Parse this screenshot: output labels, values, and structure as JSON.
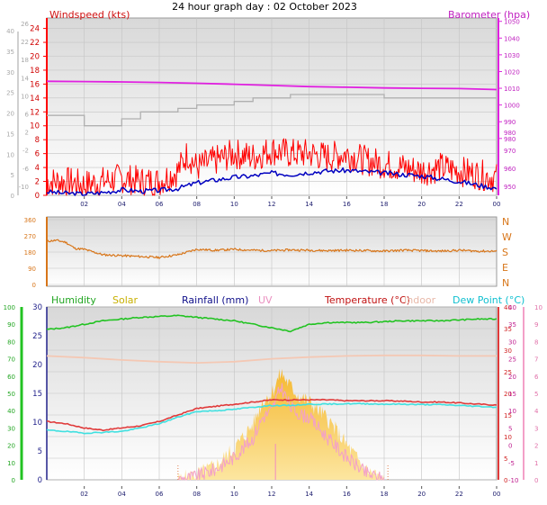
{
  "chart_data": [
    {
      "type": "line",
      "title": "24 hour graph day : 02 October 2023",
      "ylabel_left": "Windspeed (kts)",
      "ylabel_right": "Barometer (hpa)",
      "x_ticks": [
        "02",
        "04",
        "06",
        "08",
        "10",
        "12",
        "14",
        "16",
        "18",
        "20",
        "22",
        "00"
      ],
      "x_range_hours": [
        0,
        24
      ],
      "y_left": {
        "ticks_outer": [
          0,
          5,
          10,
          15,
          20,
          25,
          30,
          35,
          40
        ],
        "ticks_inner": [
          -10,
          -6,
          -2,
          2,
          6,
          10,
          14,
          18,
          22,
          26
        ],
        "labels": [
          "0",
          "2",
          "4",
          "6",
          "8",
          "10",
          "12",
          "14",
          "16",
          "18",
          "20",
          "22",
          "24"
        ],
        "range": [
          0,
          25.5
        ]
      },
      "y_right": {
        "ticks": [
          980,
          990,
          1000,
          1010,
          1020,
          1030,
          1040,
          1050
        ],
        "labels_inner": [
          950,
          960,
          970,
          980
        ],
        "range": [
          946,
          1052
        ]
      },
      "grid": true,
      "series": [
        {
          "name": "Barometer (hpa)",
          "color": "#e020e0",
          "x": [
            0,
            2,
            4,
            6,
            8,
            10,
            12,
            14,
            16,
            18,
            20,
            22,
            24
          ],
          "values": [
            1014.2,
            1014.0,
            1013.8,
            1013.5,
            1013.0,
            1012.4,
            1011.7,
            1011.0,
            1010.6,
            1010.2,
            1010.0,
            1009.8,
            1009.2
          ]
        },
        {
          "name": "Windspeed (kts)",
          "color": "#ff0000",
          "x": [
            0,
            1,
            2,
            3,
            4,
            5,
            6,
            7,
            7.5,
            8,
            9,
            10,
            11,
            12,
            13,
            14,
            15,
            16,
            17,
            18,
            19,
            20,
            21,
            22,
            23,
            24
          ],
          "values": [
            2,
            2,
            1.5,
            2,
            2.5,
            2,
            2,
            3.5,
            6,
            4,
            5,
            6,
            5.5,
            6.5,
            6,
            6,
            5.5,
            6,
            5,
            4.5,
            4,
            3.5,
            4,
            3.5,
            3,
            2.5
          ]
        },
        {
          "name": "Wind average",
          "color": "#0000c0",
          "x": [
            0,
            1,
            2,
            3,
            4,
            5,
            6,
            7,
            8,
            9,
            10,
            11,
            12,
            13,
            14,
            15,
            16,
            17,
            18,
            19,
            20,
            21,
            22,
            23,
            24
          ],
          "values": [
            0.5,
            0.3,
            0.2,
            0.4,
            0.8,
            0.6,
            0.7,
            1.0,
            1.8,
            2.2,
            2.6,
            2.8,
            3.2,
            3.0,
            3.3,
            3.5,
            3.6,
            3.4,
            3.2,
            3.0,
            2.8,
            2.4,
            2.0,
            1.5,
            1.0
          ]
        },
        {
          "name": "Wind gust grey",
          "color": "#b0b0b0",
          "x": [
            0,
            1,
            2,
            3,
            4,
            5,
            6,
            7,
            8,
            9,
            10,
            11,
            12,
            13,
            14,
            15,
            16,
            17,
            18,
            19,
            20,
            21,
            22,
            23,
            24
          ],
          "values": [
            11.5,
            11.5,
            10,
            10,
            11,
            12,
            12,
            12.5,
            13,
            13,
            13.5,
            14,
            14,
            14.5,
            14.5,
            14.5,
            14.5,
            14.5,
            14,
            14,
            14,
            14,
            14,
            14,
            14
          ]
        }
      ]
    },
    {
      "type": "line",
      "ylabel_left": "",
      "compass_labels": [
        "N",
        "W",
        "S",
        "E",
        "N"
      ],
      "y_ticks": [
        0,
        90,
        180,
        270,
        360
      ],
      "x_ticks": [
        "02",
        "04",
        "06",
        "08",
        "10",
        "12",
        "14",
        "16",
        "18",
        "20",
        "22",
        "00"
      ],
      "series": [
        {
          "name": "Wind direction",
          "color": "#d8761a",
          "x": [
            0,
            0.5,
            1,
            1.5,
            2,
            3,
            4,
            5,
            6,
            7,
            8,
            9,
            10,
            11,
            12,
            13,
            14,
            15,
            16,
            17,
            18,
            19,
            20,
            21,
            22,
            23,
            24
          ],
          "values": [
            240,
            245,
            235,
            200,
            195,
            165,
            160,
            155,
            150,
            165,
            195,
            190,
            195,
            190,
            188,
            192,
            190,
            188,
            190,
            188,
            185,
            190,
            188,
            185,
            190,
            185,
            185
          ]
        }
      ]
    },
    {
      "type": "line",
      "legend": [
        "Humidity",
        "Solar",
        "Rainfall (mm)",
        "UV",
        "Temperature (°C)",
        "Indoor",
        "Dew Point (°C)"
      ],
      "x_ticks": [
        "02",
        "04",
        "06",
        "08",
        "10",
        "12",
        "14",
        "16",
        "18",
        "20",
        "22",
        "00"
      ],
      "y_humidity": {
        "ticks": [
          0,
          10,
          20,
          30,
          40,
          50,
          60,
          70,
          80,
          90,
          100
        ]
      },
      "y_temp": {
        "ticks": [
          0,
          5,
          10,
          15,
          20,
          25,
          30,
          35,
          40
        ]
      },
      "y_inner": {
        "ticks": [
          0,
          5,
          10,
          15,
          20,
          25,
          30
        ]
      },
      "y_solar": {
        "ticks": [
          -10,
          -5,
          0,
          5,
          10,
          15,
          20,
          25,
          30,
          35,
          40
        ]
      },
      "y_uv": {
        "ticks": [
          0,
          1,
          2,
          3,
          4,
          5,
          6,
          7,
          8,
          9,
          10
        ]
      },
      "series": [
        {
          "name": "Humidity",
          "color": "#22c322",
          "x": [
            0,
            1,
            2,
            3,
            4,
            5,
            6,
            7,
            8,
            9,
            10,
            11,
            12,
            13,
            14,
            15,
            16,
            17,
            18,
            19,
            20,
            21,
            22,
            23,
            24
          ],
          "values": [
            87,
            88,
            90,
            92,
            93,
            94,
            94.5,
            95,
            94,
            93,
            92,
            90,
            88,
            86,
            90,
            91,
            91,
            91,
            91.5,
            92,
            92,
            92,
            92.5,
            93,
            93
          ]
        },
        {
          "name": "Indoor",
          "color": "#f4c8b4",
          "x": [
            0,
            2,
            4,
            6,
            8,
            10,
            12,
            14,
            16,
            18,
            20,
            22,
            24
          ],
          "values": [
            21.5,
            21.2,
            20.8,
            20.5,
            20.3,
            20.5,
            21.0,
            21.3,
            21.5,
            21.6,
            21.6,
            21.5,
            21.5
          ]
        },
        {
          "name": "Temperature (°C)",
          "color": "#e03a3a",
          "x": [
            0,
            1,
            2,
            3,
            4,
            5,
            6,
            7,
            8,
            9,
            10,
            11,
            12,
            13,
            14,
            15,
            16,
            17,
            18,
            19,
            20,
            21,
            22,
            23,
            24
          ],
          "values": [
            13.5,
            13,
            12,
            11.5,
            12,
            12.5,
            13.5,
            15,
            16.5,
            17,
            17.5,
            18,
            18.5,
            18.5,
            18.5,
            18.5,
            18.3,
            18.3,
            18.3,
            18.2,
            18.0,
            18.0,
            17.8,
            17.5,
            17.3
          ]
        },
        {
          "name": "Dew Point (°C)",
          "color": "#40e0e0",
          "x": [
            0,
            1,
            2,
            3,
            4,
            5,
            6,
            7,
            8,
            9,
            10,
            11,
            12,
            13,
            14,
            15,
            16,
            17,
            18,
            19,
            20,
            21,
            22,
            23,
            24
          ],
          "values": [
            11.5,
            11.2,
            10.8,
            11,
            11.2,
            12,
            13,
            14.5,
            15.8,
            16,
            16.3,
            16.8,
            17.2,
            17.2,
            17.5,
            17.5,
            17.6,
            17.6,
            17.5,
            17.5,
            17.4,
            17.4,
            17.2,
            17.0,
            16.8
          ]
        },
        {
          "name": "Solar",
          "color": "#f5c842",
          "x": [
            7,
            8,
            9,
            10,
            11,
            11.5,
            12,
            12.5,
            13,
            13.5,
            14,
            15,
            16,
            17,
            18
          ],
          "values": [
            0,
            0.3,
            0.8,
            1.8,
            3.2,
            4.5,
            5.0,
            6.2,
            5.4,
            4.8,
            4.5,
            3.5,
            2.0,
            0.6,
            0
          ]
        },
        {
          "name": "UV",
          "color": "#f3a0c8",
          "x": [
            7,
            8,
            9,
            10,
            11,
            11.5,
            12,
            12.5,
            13,
            13.5,
            14,
            15,
            16,
            17,
            18
          ],
          "values": [
            0,
            0.2,
            0.6,
            1.3,
            2.4,
            3.6,
            4.0,
            5.4,
            4.2,
            3.8,
            3.6,
            2.4,
            1.3,
            0.4,
            0
          ]
        }
      ]
    }
  ]
}
